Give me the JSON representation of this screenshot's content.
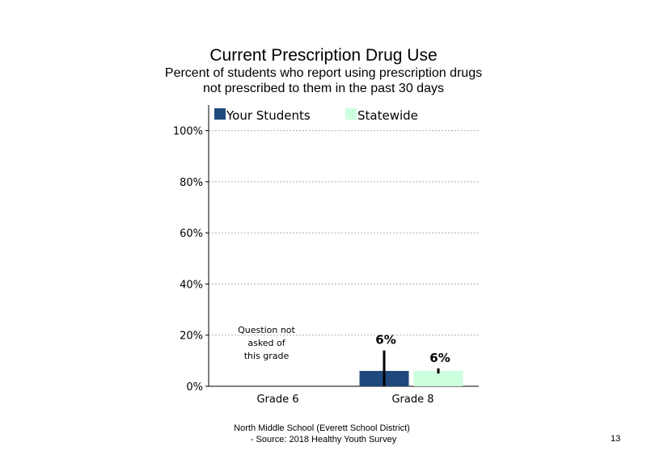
{
  "page": {
    "title": "Current Prescription Drug Use",
    "subtitle_line1": "Percent of students  who report using prescription drugs",
    "subtitle_line2": "not prescribed to them in the past 30 days",
    "footer_line1": "North Middle School (Everett School District)",
    "footer_line2": "- Source: 2018 Healthy  Youth Survey",
    "page_number": "13"
  },
  "chart_data": {
    "type": "bar",
    "categories": [
      "Grade 6",
      "Grade 8"
    ],
    "series": [
      {
        "name": "Your Students",
        "color": "#1f497d",
        "values": [
          null,
          6
        ],
        "labels": [
          "",
          "6%"
        ],
        "error_range": [
          null,
          [
            0,
            14
          ]
        ]
      },
      {
        "name": "Statewide",
        "color": "#ccffdd",
        "values": [
          null,
          6
        ],
        "labels": [
          "",
          "6%"
        ],
        "error_range": [
          null,
          [
            5,
            7
          ]
        ]
      }
    ],
    "ylim": [
      0,
      110
    ],
    "yticks": [
      0,
      20,
      40,
      60,
      80,
      100
    ],
    "ytick_labels": [
      "0%",
      "20%",
      "40%",
      "60%",
      "80%",
      "100%"
    ],
    "gridlines": true,
    "legend_position": "top",
    "annotations": [
      {
        "category": "Grade 6",
        "lines": [
          "Question not",
          "asked of",
          "this grade"
        ]
      }
    ]
  }
}
